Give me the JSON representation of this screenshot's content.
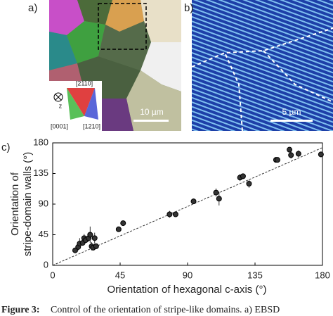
{
  "panel_labels": [
    "a)",
    "b)",
    "c)"
  ],
  "panel_a": {
    "scale_bar": "10 µm",
    "legend": {
      "top": "[2110]",
      "left": "[0001]",
      "right": "[1210]",
      "axis": "z"
    }
  },
  "panel_b": {
    "scale_bar": "5 µm"
  },
  "chart_data": {
    "type": "scatter",
    "xlabel": "Orientation of hexagonal c-axis (°)",
    "ylabel": [
      "Orientation of",
      "stripe-domain walls (°)"
    ],
    "x": [
      15,
      17,
      18,
      20,
      21,
      22,
      24,
      25,
      26,
      27,
      28,
      29,
      44,
      47,
      78,
      82,
      94,
      109,
      111,
      125,
      127,
      131,
      149,
      150,
      158,
      159,
      164,
      179
    ],
    "values": [
      22,
      27,
      32,
      33,
      40,
      37,
      40,
      45,
      28,
      26,
      40,
      28,
      53,
      62,
      75,
      75,
      94,
      107,
      98,
      129,
      131,
      120,
      155,
      155,
      170,
      162,
      164,
      163
    ],
    "errors": [
      4,
      5,
      8,
      4,
      6,
      4,
      5,
      12,
      6,
      4,
      8,
      4,
      2,
      2,
      5,
      4,
      4,
      6,
      10,
      5,
      4,
      6,
      3,
      2,
      4,
      5,
      5,
      4
    ],
    "fit_line": {
      "x": [
        0,
        180
      ],
      "y": [
        0,
        173
      ]
    },
    "xlim": [
      0,
      180
    ],
    "ylim": [
      0,
      180
    ],
    "xticks": [
      0,
      45,
      90,
      135,
      180
    ],
    "yticks": [
      0,
      45,
      90,
      135,
      180
    ],
    "color": "#333333"
  },
  "caption": {
    "label": "Figure 3:",
    "text": "Control of the orientation of stripe-like domains. a) EBSD"
  }
}
